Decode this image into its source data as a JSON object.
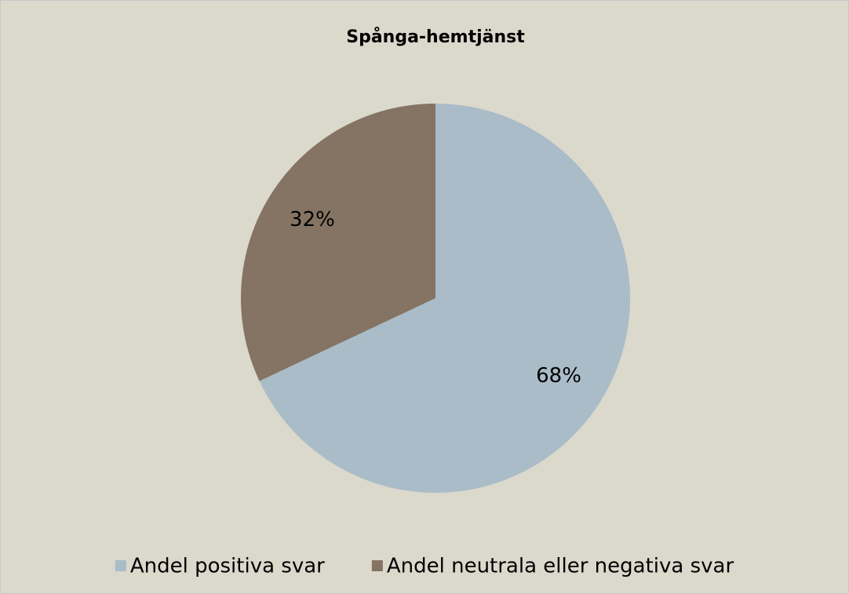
{
  "chart_data": {
    "type": "pie",
    "title": "Spånga-hemtjänst",
    "categories": [
      "Andel positiva svar",
      "Andel neutrala eller negativa svar"
    ],
    "values": [
      68,
      32
    ],
    "value_labels": [
      "68%",
      "32%"
    ],
    "colors": [
      "#a9bcc8",
      "#857463"
    ]
  }
}
